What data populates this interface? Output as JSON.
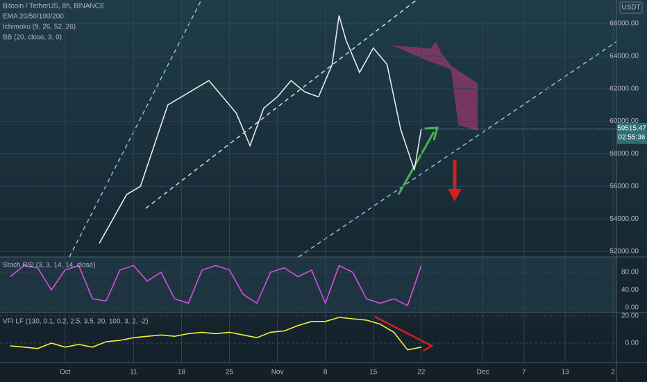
{
  "chart_data": [
    {
      "type": "line",
      "title": "Bitcoin / TetherUS, 8h, BINANCE",
      "indicators": [
        "EMA 20/50/100/200",
        "Ichimoku (9, 26, 52, 26)",
        "BB (20, close, 3, 0)"
      ],
      "currency": "USDT",
      "countdown": "02:55:36",
      "color": "#e8e8e8",
      "x": [
        5,
        7,
        9,
        11,
        13,
        15,
        17,
        19,
        21,
        23,
        25,
        27,
        29,
        31,
        33,
        35,
        37,
        39,
        40,
        41,
        43,
        45,
        47,
        49,
        51,
        52
      ],
      "values": [
        52500,
        54000,
        55500,
        56000,
        58500,
        61000,
        61500,
        62000,
        62500,
        61500,
        60500,
        58500,
        60800,
        61500,
        62500,
        61800,
        61500,
        63500,
        66500,
        65000,
        63000,
        64500,
        63500,
        59500,
        57000,
        59515.47
      ],
      "xlim": [
        -9.5,
        80.5
      ],
      "xticks": [
        {
          "value": 0,
          "label": "Oct"
        },
        {
          "value": 10,
          "label": "11"
        },
        {
          "value": 17,
          "label": "18"
        },
        {
          "value": 24,
          "label": "25"
        },
        {
          "value": 31,
          "label": "Nov"
        },
        {
          "value": 38,
          "label": "8"
        },
        {
          "value": 45,
          "label": "15"
        },
        {
          "value": 52,
          "label": "22"
        },
        {
          "value": 61,
          "label": "Dec"
        },
        {
          "value": 67,
          "label": "7"
        },
        {
          "value": 73,
          "label": "13"
        },
        {
          "value": 80,
          "label": "2"
        }
      ],
      "ylim": [
        51660,
        67450
      ],
      "yticks": [
        {
          "value": 52000,
          "label": "52000.00"
        },
        {
          "value": 54000,
          "label": "54000.00"
        },
        {
          "value": 56000,
          "label": "56000.00"
        },
        {
          "value": 58000,
          "label": "58000.00"
        },
        {
          "value": 60000,
          "label": "60000.00"
        },
        {
          "value": 62000,
          "label": "62000.00"
        },
        {
          "value": 64000,
          "label": "64000.00"
        },
        {
          "value": 66000,
          "label": "66000.00"
        }
      ],
      "grid": true
    },
    {
      "type": "line",
      "title": "Stoch RSI (3, 3, 14, 14, close)",
      "color": "#d84de0",
      "x": [
        -8,
        -6,
        -4,
        -2,
        0,
        2,
        4,
        6,
        8,
        10,
        12,
        14,
        16,
        18,
        20,
        22,
        24,
        26,
        28,
        30,
        32,
        34,
        36,
        38,
        40,
        42,
        44,
        46,
        48,
        50,
        52
      ],
      "values": [
        70,
        95,
        90,
        40,
        85,
        95,
        20,
        15,
        85,
        95,
        60,
        80,
        20,
        10,
        85,
        95,
        85,
        30,
        10,
        80,
        90,
        70,
        85,
        10,
        95,
        80,
        20,
        10,
        20,
        5,
        95
      ],
      "ylim": [
        -11,
        114.5
      ],
      "yticks": [
        {
          "value": 0,
          "label": "0.00"
        },
        {
          "value": 40,
          "label": "40.00"
        },
        {
          "value": 80,
          "label": "80.00"
        }
      ]
    },
    {
      "type": "line",
      "title": "VFI LF (130, 0.1, 0.2, 2.5, 3.5, 20, 100, 3, 2, -2)",
      "color": "#f5f03a",
      "x": [
        -8,
        -6,
        -4,
        -2,
        0,
        2,
        4,
        6,
        8,
        10,
        12,
        14,
        16,
        18,
        20,
        22,
        24,
        26,
        28,
        30,
        32,
        34,
        36,
        38,
        40,
        42,
        44,
        46,
        48,
        50,
        52
      ],
      "values": [
        -2,
        -3,
        -4,
        0,
        -3,
        -1,
        -3,
        1,
        2,
        4,
        5,
        6,
        5,
        7,
        8,
        7,
        8,
        6,
        4,
        8,
        9,
        13,
        16,
        16,
        19,
        18,
        17,
        14,
        8,
        -5,
        -3
      ],
      "ylim": [
        -14.4,
        22.6
      ],
      "yticks": [
        {
          "value": 0,
          "label": "0.00"
        },
        {
          "value": 20,
          "label": "20.00"
        }
      ]
    }
  ]
}
